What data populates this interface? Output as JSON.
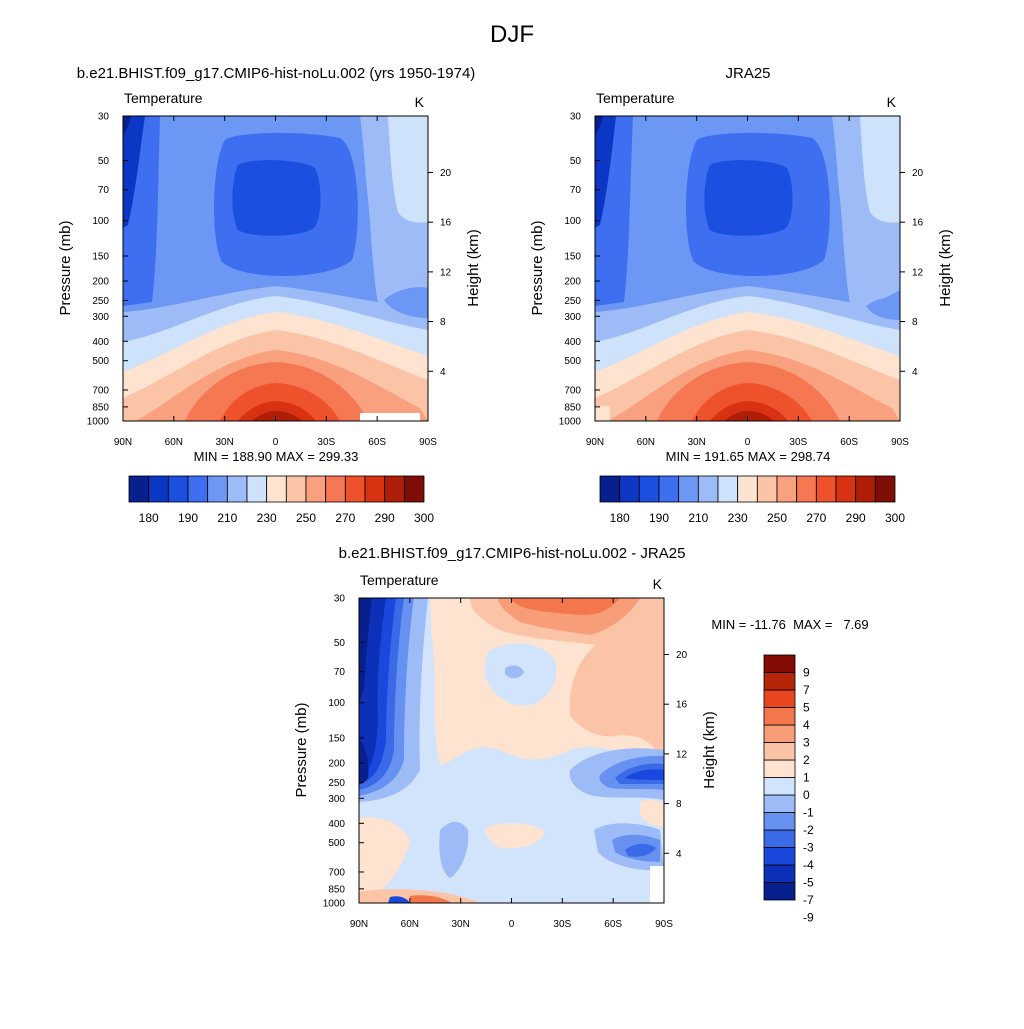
{
  "figure": {
    "title": "DJF"
  },
  "palettes": {
    "absolute": [
      "#08208e",
      "#0c36c4",
      "#1a4fe0",
      "#3d6ff0",
      "#6d97f5",
      "#9dbcf7",
      "#cfe2fb",
      "#fde3d0",
      "#fcc4a6",
      "#f9a07f",
      "#f67853",
      "#ee522d",
      "#d93212",
      "#b01e08",
      "#7e0d06"
    ],
    "difference": [
      "#08208e",
      "#0c30b8",
      "#1a48dc",
      "#3a6ae8",
      "#6691f0",
      "#9dbcf7",
      "#d2e4fb",
      "#fde3d0",
      "#fcc4a6",
      "#f79e79",
      "#f3774b",
      "#e8461e",
      "#b52508",
      "#820b04"
    ]
  },
  "chart_data": [
    {
      "type": "heatmap",
      "name": "model",
      "title": "b.e21.BHIST.f09_g17.CMIP6-hist-noLu.002 (yrs 1950-1974)",
      "subtitle_left": "Temperature",
      "subtitle_right": "K",
      "xlabel": "",
      "ylabel": "Pressure (mb)",
      "ylabel_right": "Height (km)",
      "x_ticks": [
        "90N",
        "60N",
        "30N",
        "0",
        "30S",
        "60S",
        "90S"
      ],
      "y_ticks": [
        30,
        50,
        70,
        100,
        150,
        200,
        250,
        300,
        400,
        500,
        700,
        850,
        1000
      ],
      "y_scale": "log",
      "y_right_ticks": [
        20,
        16,
        12,
        8,
        4
      ],
      "summary": "MIN = 188.90  MAX = 299.33",
      "min": 188.9,
      "max": 299.33,
      "colorbar": {
        "orientation": "horizontal",
        "labels": [
          "180",
          "190",
          "210",
          "230",
          "250",
          "270",
          "290",
          "300"
        ]
      }
    },
    {
      "type": "heatmap",
      "name": "obs",
      "title": "JRA25",
      "subtitle_left": "Temperature",
      "subtitle_right": "K",
      "xlabel": "",
      "ylabel": "Pressure (mb)",
      "ylabel_right": "Height (km)",
      "x_ticks": [
        "90N",
        "60N",
        "30N",
        "0",
        "30S",
        "60S",
        "90S"
      ],
      "y_ticks": [
        30,
        50,
        70,
        100,
        150,
        200,
        250,
        300,
        400,
        500,
        700,
        850,
        1000
      ],
      "y_scale": "log",
      "y_right_ticks": [
        20,
        16,
        12,
        8,
        4
      ],
      "summary": "MIN = 191.65  MAX = 298.74",
      "min": 191.65,
      "max": 298.74,
      "colorbar": {
        "orientation": "horizontal",
        "labels": [
          "180",
          "190",
          "210",
          "230",
          "250",
          "270",
          "290",
          "300"
        ]
      }
    },
    {
      "type": "heatmap",
      "name": "diff",
      "title": "b.e21.BHIST.f09_g17.CMIP6-hist-noLu.002 - JRA25",
      "subtitle_left": "Temperature",
      "subtitle_right": "K",
      "xlabel": "",
      "ylabel": "Pressure (mb)",
      "ylabel_right": "Height (km)",
      "x_ticks": [
        "90N",
        "60N",
        "30N",
        "0",
        "30S",
        "60S",
        "90S"
      ],
      "y_ticks": [
        30,
        50,
        70,
        100,
        150,
        200,
        250,
        300,
        400,
        500,
        700,
        850,
        1000
      ],
      "y_scale": "log",
      "y_right_ticks": [
        20,
        16,
        12,
        8,
        4
      ],
      "summary": "MIN = -11.76  MAX =   7.69",
      "min": -11.76,
      "max": 7.69,
      "colorbar": {
        "orientation": "vertical",
        "labels": [
          "9",
          "7",
          "5",
          "4",
          "3",
          "2",
          "1",
          "0",
          "-1",
          "-2",
          "-3",
          "-4",
          "-5",
          "-7",
          "-9"
        ]
      }
    }
  ]
}
